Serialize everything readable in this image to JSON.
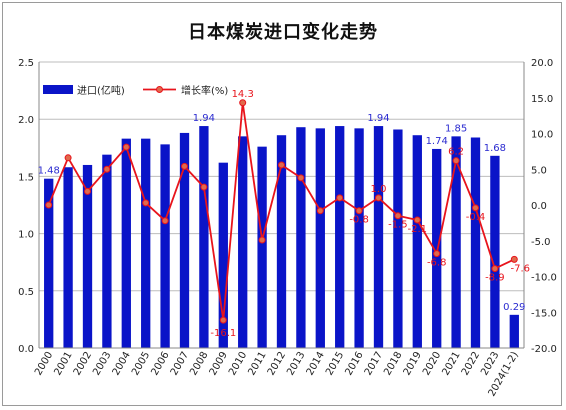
{
  "chart_data": {
    "type": "bar",
    "title": "日本煤炭进口变化走势",
    "categories": [
      "2000",
      "2001",
      "2002",
      "2003",
      "2004",
      "2005",
      "2006",
      "2007",
      "2008",
      "2009",
      "2010",
      "2011",
      "2012",
      "2013",
      "2014",
      "2015",
      "2016",
      "2017",
      "2018",
      "2019",
      "2020",
      "2021",
      "2022",
      "2023",
      "2024(1-2)"
    ],
    "series": [
      {
        "name": "进口(亿吨)",
        "type": "bar",
        "axis": "left",
        "color": "#0a14c8",
        "values": [
          1.48,
          1.58,
          1.6,
          1.69,
          1.83,
          1.83,
          1.78,
          1.88,
          1.94,
          1.62,
          1.85,
          1.76,
          1.86,
          1.93,
          1.92,
          1.94,
          1.92,
          1.94,
          1.91,
          1.86,
          1.74,
          1.85,
          1.84,
          1.68,
          0.29
        ]
      },
      {
        "name": "增长率(%)",
        "type": "line",
        "axis": "right",
        "color": "#e8141c",
        "values": [
          0.0,
          6.6,
          1.9,
          5.0,
          8.1,
          0.3,
          -2.2,
          5.4,
          2.5,
          -16.1,
          14.3,
          -4.9,
          5.6,
          3.8,
          -0.8,
          1.0,
          -0.8,
          1.0,
          -1.5,
          -2.1,
          -6.8,
          6.2,
          -0.4,
          -8.9,
          -7.6
        ]
      }
    ],
    "bar_labels": [
      {
        "index": 0,
        "text": "1.48"
      },
      {
        "index": 8,
        "text": "1.94"
      },
      {
        "index": 17,
        "text": "1.94"
      },
      {
        "index": 20,
        "text": "1.74"
      },
      {
        "index": 21,
        "text": "1.85"
      },
      {
        "index": 23,
        "text": "1.68"
      },
      {
        "index": 24,
        "text": "0.29"
      }
    ],
    "line_labels": [
      {
        "index": 9,
        "text": "-16.1"
      },
      {
        "index": 10,
        "text": "14.3"
      },
      {
        "index": 16,
        "text": "-0.8"
      },
      {
        "index": 17,
        "text": "1.0"
      },
      {
        "index": 18,
        "text": "-1.5"
      },
      {
        "index": 19,
        "text": "-2.1"
      },
      {
        "index": 20,
        "text": "-6.8"
      },
      {
        "index": 21,
        "text": "6.2"
      },
      {
        "index": 22,
        "text": "-0.4"
      },
      {
        "index": 23,
        "text": "-8.9"
      },
      {
        "index": 24,
        "text": "-7.6"
      }
    ],
    "ylim_left": [
      0,
      2.5
    ],
    "yticks_left": [
      "0.0",
      "0.5",
      "1.0",
      "1.5",
      "2.0",
      "2.5"
    ],
    "ylim_right": [
      -20,
      20
    ],
    "yticks_right": [
      "-20.0",
      "-15.0",
      "-10.0",
      "-5.0",
      "0.0",
      "5.0",
      "10.0",
      "15.0",
      "20.0"
    ],
    "grid": true,
    "legend_position": "top-left"
  }
}
